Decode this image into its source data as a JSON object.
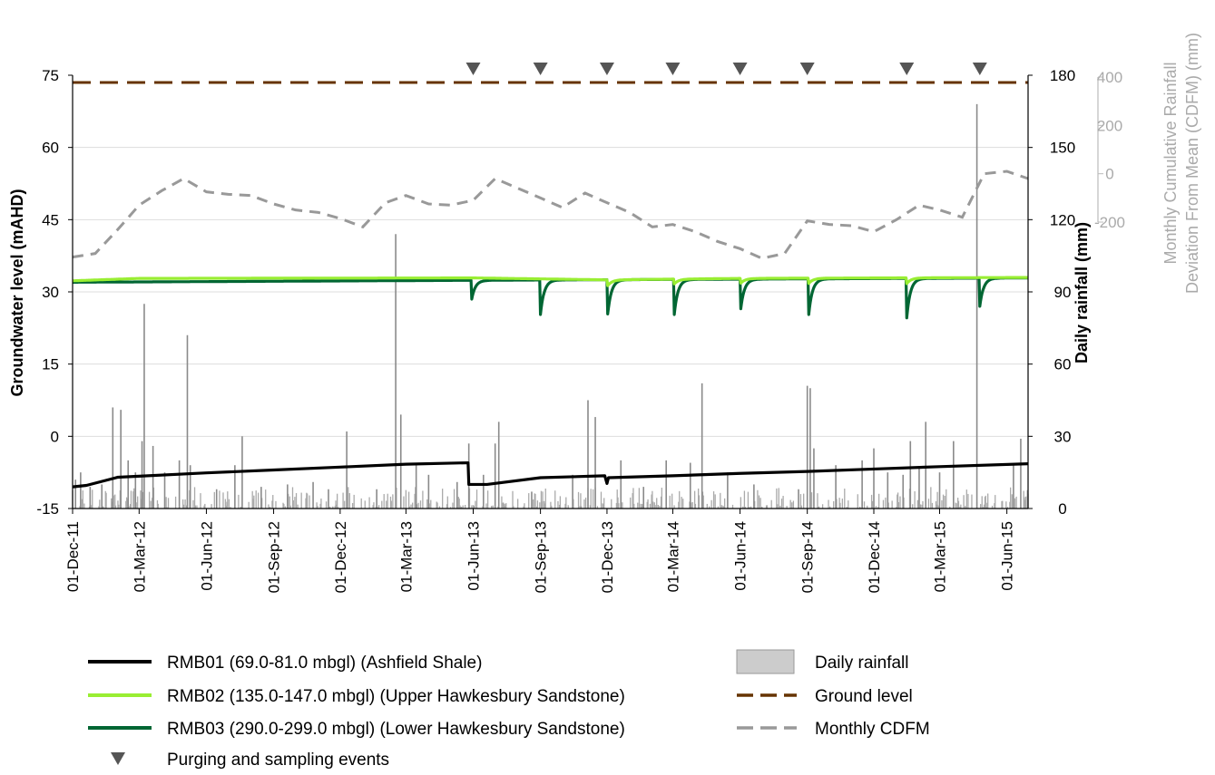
{
  "chart_data": {
    "type": "line",
    "title": "",
    "x_axis": {
      "type": "date",
      "tick_labels": [
        "01-Dec-11",
        "01-Mar-12",
        "01-Jun-12",
        "01-Sep-12",
        "01-Dec-12",
        "01-Mar-13",
        "01-Jun-13",
        "01-Sep-13",
        "01-Dec-13",
        "01-Mar-14",
        "01-Jun-14",
        "01-Sep-14",
        "01-Dec-14",
        "01-Mar-15",
        "01-Jun-15"
      ],
      "range": [
        "2011-12-01",
        "2015-06-30"
      ]
    },
    "y_left": {
      "label": "Groundwater level (mAHD)",
      "range": [
        -15,
        75
      ],
      "ticks": [
        -15,
        0,
        15,
        30,
        45,
        60,
        75
      ],
      "grid": true
    },
    "y_right_rain": {
      "label": "Daily rainfall (mm)",
      "range": [
        0,
        180
      ],
      "ticks": [
        0,
        30,
        60,
        90,
        120,
        150,
        180
      ]
    },
    "y_right_cdfm": {
      "label_line1": "Monthly Cumulative Rainfall",
      "label_line2": "Deviation From Mean (CDFM) (mm)",
      "range": [
        -200,
        400
      ],
      "ticks": [
        -200,
        0,
        200,
        400
      ]
    },
    "series": [
      {
        "name": "RMB01 (69.0-81.0 mbgl) (Ashfield Shale)",
        "color": "#000000",
        "axis": "left",
        "points": [
          [
            "2011-12-01",
            -10.5
          ],
          [
            "2011-12-20",
            -10.2
          ],
          [
            "2012-02-01",
            -8.5
          ],
          [
            "2012-06-01",
            -7.6
          ],
          [
            "2012-09-01",
            -7.0
          ],
          [
            "2012-12-01",
            -6.4
          ],
          [
            "2013-03-01",
            -5.8
          ],
          [
            "2013-05-25",
            -5.5
          ],
          [
            "2013-05-26",
            -10.0
          ],
          [
            "2013-06-20",
            -10.0
          ],
          [
            "2013-09-01",
            -8.6
          ],
          [
            "2013-11-28",
            -8.2
          ],
          [
            "2013-12-01",
            -9.8
          ],
          [
            "2013-12-03",
            -8.6
          ],
          [
            "2014-03-01",
            -8.2
          ],
          [
            "2014-06-01",
            -7.7
          ],
          [
            "2014-09-01",
            -7.3
          ],
          [
            "2014-12-01",
            -6.8
          ],
          [
            "2015-03-01",
            -6.3
          ],
          [
            "2015-06-30",
            -5.7
          ]
        ]
      },
      {
        "name": "RMB02 (135.0-147.0 mbgl) (Upper Hawkesbury Sandstone)",
        "color": "#99ee33",
        "axis": "left",
        "points": [
          [
            "2011-12-01",
            32.3
          ],
          [
            "2012-03-01",
            32.8
          ],
          [
            "2013-06-01",
            32.9
          ],
          [
            "2013-12-01",
            32.5
          ],
          [
            "2014-06-01",
            32.8
          ],
          [
            "2015-06-30",
            33.0
          ]
        ],
        "dips": [
          [
            "2013-12-02",
            -1.2
          ],
          [
            "2014-03-03",
            -1.0
          ],
          [
            "2014-06-02",
            -1.0
          ],
          [
            "2014-09-03",
            -1.1
          ],
          [
            "2015-01-15",
            -1.2
          ]
        ]
      },
      {
        "name": "RMB03 (290.0-299.0 mbgl) (Lower Hawkesbury Sandstone)",
        "color": "#006633",
        "axis": "left",
        "base": [
          [
            "2011-12-01",
            32.0
          ],
          [
            "2013-05-28",
            32.4
          ],
          [
            "2015-06-30",
            32.9
          ]
        ],
        "dips": [
          [
            "2013-05-30",
            28.5
          ],
          [
            "2013-09-01",
            25.3
          ],
          [
            "2013-12-02",
            25.4
          ],
          [
            "2014-03-03",
            25.3
          ],
          [
            "2014-06-02",
            26.5
          ],
          [
            "2014-09-03",
            25.3
          ],
          [
            "2015-01-15",
            24.6
          ],
          [
            "2015-04-25",
            27.0
          ]
        ]
      },
      {
        "name": "Daily rainfall",
        "color": "#aaaaaa",
        "axis": "right_rain",
        "type": "bar",
        "major_events": [
          [
            "2011-12-05",
            12
          ],
          [
            "2011-12-12",
            15
          ],
          [
            "2011-12-25",
            9
          ],
          [
            "2012-01-10",
            10
          ],
          [
            "2012-01-25",
            42
          ],
          [
            "2012-02-05",
            41
          ],
          [
            "2012-02-15",
            20
          ],
          [
            "2012-02-25",
            15
          ],
          [
            "2012-03-05",
            28
          ],
          [
            "2012-03-08",
            85
          ],
          [
            "2012-03-20",
            26
          ],
          [
            "2012-04-05",
            15
          ],
          [
            "2012-04-25",
            20
          ],
          [
            "2012-05-06",
            72
          ],
          [
            "2012-05-10",
            18
          ],
          [
            "2012-06-15",
            8
          ],
          [
            "2012-07-10",
            18
          ],
          [
            "2012-07-20",
            30
          ],
          [
            "2012-08-15",
            9
          ],
          [
            "2012-09-20",
            10
          ],
          [
            "2012-10-25",
            11
          ],
          [
            "2012-11-15",
            8
          ],
          [
            "2012-12-10",
            32
          ],
          [
            "2013-01-20",
            8
          ],
          [
            "2013-02-15",
            114
          ],
          [
            "2013-02-22",
            39
          ],
          [
            "2013-03-15",
            19
          ],
          [
            "2013-04-01",
            14
          ],
          [
            "2013-05-10",
            11
          ],
          [
            "2013-05-26",
            27
          ],
          [
            "2013-06-15",
            14
          ],
          [
            "2013-07-01",
            27
          ],
          [
            "2013-07-06",
            36
          ],
          [
            "2013-08-20",
            7
          ],
          [
            "2013-10-15",
            14
          ],
          [
            "2013-11-05",
            45
          ],
          [
            "2013-11-15",
            38
          ],
          [
            "2013-12-20",
            20
          ],
          [
            "2014-01-20",
            9
          ],
          [
            "2014-02-20",
            20
          ],
          [
            "2014-03-25",
            19
          ],
          [
            "2014-04-10",
            52
          ],
          [
            "2014-05-15",
            15
          ],
          [
            "2014-06-20",
            10
          ],
          [
            "2014-08-20",
            8
          ],
          [
            "2014-09-01",
            51
          ],
          [
            "2014-09-05",
            50
          ],
          [
            "2014-09-10",
            25
          ],
          [
            "2014-10-10",
            18
          ],
          [
            "2014-11-15",
            20
          ],
          [
            "2014-12-01",
            25
          ],
          [
            "2014-12-20",
            15
          ],
          [
            "2015-01-10",
            14
          ],
          [
            "2015-01-20",
            28
          ],
          [
            "2015-02-01",
            17
          ],
          [
            "2015-02-10",
            36
          ],
          [
            "2015-03-01",
            15
          ],
          [
            "2015-03-20",
            28
          ],
          [
            "2015-04-21",
            168
          ],
          [
            "2015-06-10",
            18
          ],
          [
            "2015-06-20",
            29
          ]
        ]
      },
      {
        "name": "Monthly CDFM",
        "color": "#999999",
        "axis": "right_cdfm",
        "points": [
          [
            "2011-12-01",
            -345
          ],
          [
            "2012-01-01",
            -330
          ],
          [
            "2012-02-01",
            -230
          ],
          [
            "2012-03-01",
            -130
          ],
          [
            "2012-04-01",
            -70
          ],
          [
            "2012-05-01",
            -20
          ],
          [
            "2012-06-01",
            -75
          ],
          [
            "2012-07-01",
            -85
          ],
          [
            "2012-08-01",
            -90
          ],
          [
            "2012-09-01",
            -125
          ],
          [
            "2012-10-01",
            -150
          ],
          [
            "2012-11-01",
            -160
          ],
          [
            "2012-12-01",
            -185
          ],
          [
            "2013-01-01",
            -220
          ],
          [
            "2013-02-01",
            -120
          ],
          [
            "2013-03-01",
            -90
          ],
          [
            "2013-04-01",
            -125
          ],
          [
            "2013-05-01",
            -130
          ],
          [
            "2013-06-01",
            -110
          ],
          [
            "2013-07-01",
            -20
          ],
          [
            "2013-08-01",
            -60
          ],
          [
            "2013-09-01",
            -100
          ],
          [
            "2013-10-01",
            -140
          ],
          [
            "2013-11-01",
            -80
          ],
          [
            "2013-12-01",
            -120
          ],
          [
            "2014-01-01",
            -160
          ],
          [
            "2014-02-01",
            -220
          ],
          [
            "2014-03-01",
            -210
          ],
          [
            "2014-04-01",
            -240
          ],
          [
            "2014-05-01",
            -280
          ],
          [
            "2014-06-01",
            -310
          ],
          [
            "2014-07-01",
            -350
          ],
          [
            "2014-08-01",
            -330
          ],
          [
            "2014-09-01",
            -195
          ],
          [
            "2014-10-01",
            -210
          ],
          [
            "2014-11-01",
            -215
          ],
          [
            "2014-12-01",
            -240
          ],
          [
            "2015-01-01",
            -190
          ],
          [
            "2015-02-01",
            -130
          ],
          [
            "2015-03-01",
            -150
          ],
          [
            "2015-04-01",
            -180
          ],
          [
            "2015-05-01",
            0
          ],
          [
            "2015-06-01",
            10
          ],
          [
            "2015-06-30",
            -20
          ]
        ]
      },
      {
        "name": "Ground level",
        "color": "#663300",
        "axis": "left",
        "value": 73.5
      }
    ],
    "sampling_events": [
      "2013-06-01",
      "2013-09-01",
      "2013-12-01",
      "2014-03-01",
      "2014-06-01",
      "2014-09-01",
      "2015-01-15",
      "2015-04-25"
    ],
    "legend": {
      "placement": "bottom",
      "items": [
        {
          "label": "RMB01 (69.0-81.0 mbgl) (Ashfield Shale)",
          "kind": "line",
          "color": "#000000"
        },
        {
          "label": "RMB02 (135.0-147.0 mbgl) (Upper Hawkesbury Sandstone)",
          "kind": "line",
          "color": "#99ee33"
        },
        {
          "label": "RMB03 (290.0-299.0 mbgl) (Lower Hawkesbury Sandstone)",
          "kind": "line",
          "color": "#006633"
        },
        {
          "label": "Purging and sampling events",
          "kind": "triangle",
          "color": "#555555"
        },
        {
          "label": "Daily rainfall",
          "kind": "box",
          "color": "#cccccc"
        },
        {
          "label": "Ground level",
          "kind": "dash",
          "color": "#663300"
        },
        {
          "label": "Monthly CDFM",
          "kind": "dash",
          "color": "#999999"
        }
      ]
    }
  }
}
